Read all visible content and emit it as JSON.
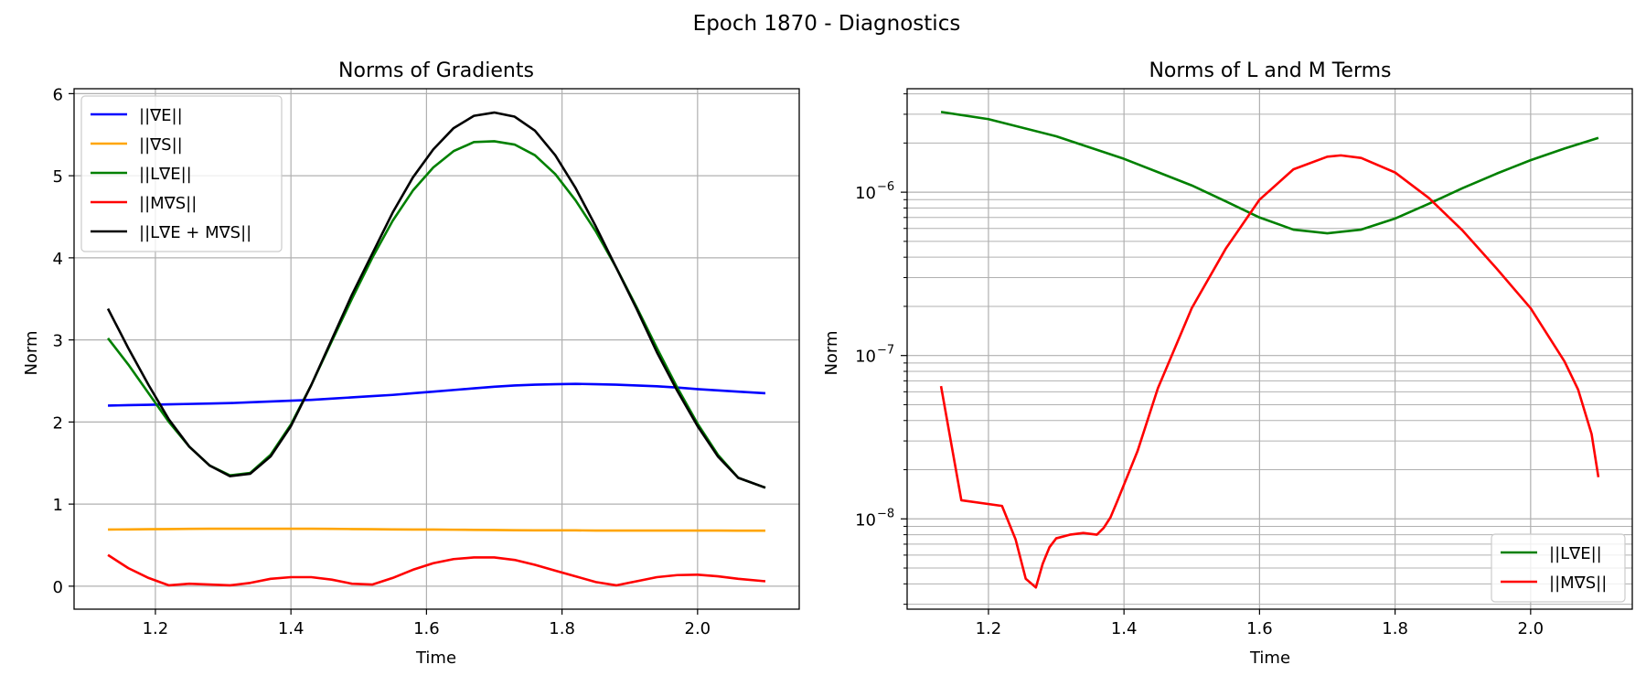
{
  "figure": {
    "suptitle": "Epoch 1870 - Diagnostics"
  },
  "chart_data": [
    {
      "type": "line",
      "title": "Norms of Gradients",
      "xlabel": "Time",
      "ylabel": "Norm",
      "xlim": [
        1.08,
        2.15
      ],
      "ylim": [
        -0.28,
        6.06
      ],
      "yscale": "linear",
      "xticks": [
        1.2,
        1.4,
        1.6,
        1.8,
        2.0
      ],
      "xtick_labels": [
        "1.2",
        "1.4",
        "1.6",
        "1.8",
        "2.0"
      ],
      "yticks": [
        0,
        1,
        2,
        3,
        4,
        5,
        6
      ],
      "ytick_labels": [
        "0",
        "1",
        "2",
        "3",
        "4",
        "5",
        "6"
      ],
      "grid": true,
      "legend_position": "upper-left",
      "x": [
        1.13,
        1.16,
        1.19,
        1.22,
        1.25,
        1.28,
        1.31,
        1.34,
        1.37,
        1.4,
        1.43,
        1.46,
        1.49,
        1.52,
        1.55,
        1.58,
        1.61,
        1.64,
        1.67,
        1.7,
        1.73,
        1.76,
        1.79,
        1.82,
        1.85,
        1.88,
        1.91,
        1.94,
        1.97,
        2.0,
        2.03,
        2.06,
        2.1
      ],
      "series": [
        {
          "name": "||∇E||",
          "color": "#0000ff",
          "values": [
            2.2,
            2.205,
            2.21,
            2.215,
            2.22,
            2.225,
            2.23,
            2.24,
            2.25,
            2.26,
            2.27,
            2.285,
            2.3,
            2.315,
            2.33,
            2.35,
            2.37,
            2.39,
            2.41,
            2.43,
            2.445,
            2.455,
            2.46,
            2.465,
            2.46,
            2.455,
            2.445,
            2.435,
            2.42,
            2.4,
            2.385,
            2.37,
            2.35
          ]
        },
        {
          "name": "||∇S||",
          "color": "#ffa500",
          "values": [
            0.69,
            0.692,
            0.694,
            0.696,
            0.698,
            0.7,
            0.7,
            0.7,
            0.7,
            0.7,
            0.7,
            0.698,
            0.696,
            0.694,
            0.692,
            0.69,
            0.69,
            0.688,
            0.686,
            0.684,
            0.682,
            0.68,
            0.68,
            0.68,
            0.678,
            0.678,
            0.678,
            0.677,
            0.677,
            0.677,
            0.677,
            0.676,
            0.676
          ]
        },
        {
          "name": "||L∇E||",
          "color": "#008000",
          "values": [
            3.02,
            2.7,
            2.35,
            2.0,
            1.7,
            1.47,
            1.35,
            1.38,
            1.6,
            1.97,
            2.45,
            2.98,
            3.5,
            4.0,
            4.45,
            4.82,
            5.1,
            5.3,
            5.41,
            5.42,
            5.38,
            5.25,
            5.02,
            4.7,
            4.32,
            3.88,
            3.4,
            2.9,
            2.42,
            1.98,
            1.6,
            1.32,
            1.2
          ]
        },
        {
          "name": "||M∇S||",
          "color": "#ff0000",
          "values": [
            0.38,
            0.22,
            0.1,
            0.01,
            0.03,
            0.02,
            0.01,
            0.04,
            0.09,
            0.11,
            0.11,
            0.08,
            0.03,
            0.02,
            0.1,
            0.2,
            0.28,
            0.33,
            0.35,
            0.35,
            0.32,
            0.26,
            0.19,
            0.12,
            0.05,
            0.01,
            0.06,
            0.11,
            0.135,
            0.14,
            0.12,
            0.09,
            0.06
          ]
        },
        {
          "name": "||L∇E + M∇S||",
          "color": "#000000",
          "values": [
            3.38,
            2.9,
            2.45,
            2.03,
            1.7,
            1.47,
            1.34,
            1.37,
            1.58,
            1.95,
            2.45,
            3.0,
            3.55,
            4.05,
            4.55,
            4.98,
            5.32,
            5.58,
            5.73,
            5.77,
            5.72,
            5.55,
            5.25,
            4.85,
            4.38,
            3.88,
            3.38,
            2.85,
            2.38,
            1.95,
            1.58,
            1.32,
            1.2
          ]
        }
      ]
    },
    {
      "type": "line",
      "title": "Norms of L and M Terms",
      "xlabel": "Time",
      "ylabel": "Norm",
      "xlim": [
        1.08,
        2.15
      ],
      "ylim": [
        2.8e-09,
        4.3e-06
      ],
      "yscale": "log",
      "xticks": [
        1.2,
        1.4,
        1.6,
        1.8,
        2.0
      ],
      "xtick_labels": [
        "1.2",
        "1.4",
        "1.6",
        "1.8",
        "2.0"
      ],
      "yticks": [
        1e-08,
        1e-07,
        1e-06
      ],
      "ytick_labels": [
        "10",
        "10",
        "10"
      ],
      "ytick_exponents": [
        "−8",
        "−7",
        "−6"
      ],
      "grid": true,
      "legend_position": "lower-right",
      "series": [
        {
          "name": "||L∇E||",
          "color": "#008000",
          "x": [
            1.13,
            1.2,
            1.3,
            1.4,
            1.5,
            1.55,
            1.6,
            1.65,
            1.7,
            1.75,
            1.8,
            1.85,
            1.9,
            1.95,
            2.0,
            2.05,
            2.1
          ],
          "values": [
            3.1e-06,
            2.8e-06,
            2.2e-06,
            1.6e-06,
            1.1e-06,
            8.8e-07,
            7e-07,
            5.9e-07,
            5.6e-07,
            5.9e-07,
            6.9e-07,
            8.5e-07,
            1.06e-06,
            1.3e-06,
            1.57e-06,
            1.85e-06,
            2.15e-06
          ]
        },
        {
          "name": "||M∇S||",
          "color": "#ff0000",
          "x": [
            1.13,
            1.16,
            1.22,
            1.24,
            1.255,
            1.27,
            1.28,
            1.29,
            1.3,
            1.32,
            1.34,
            1.36,
            1.37,
            1.38,
            1.39,
            1.42,
            1.45,
            1.5,
            1.55,
            1.6,
            1.65,
            1.7,
            1.72,
            1.75,
            1.8,
            1.85,
            1.9,
            1.95,
            2.0,
            2.05,
            2.07,
            2.09,
            2.1
          ],
          "values": [
            6.5e-08,
            1.3e-08,
            1.2e-08,
            7.5e-09,
            4.3e-09,
            3.8e-09,
            5.3e-09,
            6.7e-09,
            7.6e-09,
            8e-09,
            8.2e-09,
            8e-09,
            8.8e-09,
            1.02e-08,
            1.28e-08,
            2.6e-08,
            6.3e-08,
            1.95e-07,
            4.5e-07,
            9e-07,
            1.38e-06,
            1.65e-06,
            1.68e-06,
            1.62e-06,
            1.32e-06,
            9.2e-07,
            5.8e-07,
            3.4e-07,
            1.95e-07,
            9.2e-08,
            6.2e-08,
            3.3e-08,
            1.8e-08
          ]
        }
      ]
    }
  ]
}
